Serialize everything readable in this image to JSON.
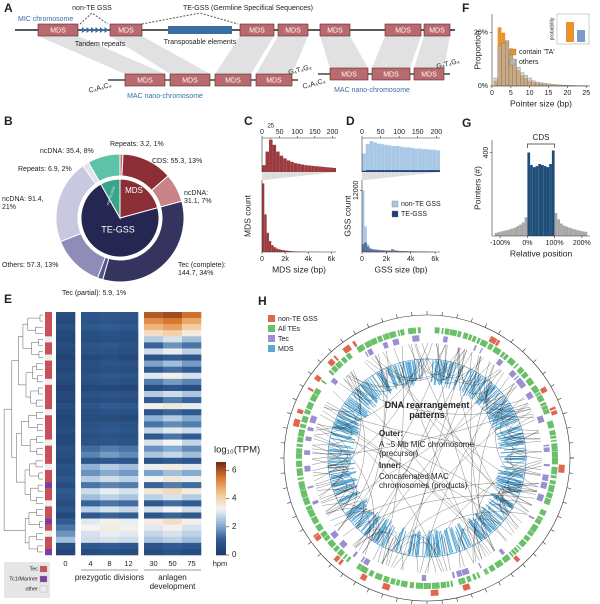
{
  "panel_letters": [
    "A",
    "B",
    "C",
    "D",
    "E",
    "F",
    "G",
    "H"
  ],
  "panel_a": {
    "mic_label": "MIC chromosome",
    "non_te_gss": "non-TE GSS",
    "te_gss": "TE-GSS (Germline Specifical Sequences)",
    "tandem_repeats": "Tandem repeats",
    "transposable_elements": "Transposable elements",
    "mds_label": "MDS",
    "telomere_5": "C₄A₄C₄",
    "telomere_3": "G₄T₄G₄",
    "mac_label": "MAC nano-chromosome"
  },
  "chart_data": [
    {
      "type": "donut",
      "outer": {
        "values": [
          3.2,
          55.3,
          31.1,
          144.7,
          5.9,
          57.3,
          91.4,
          6.9,
          35.4
        ],
        "value_labels": [
          "Repeats: 3.2, 1%",
          "CDS: 55.3, 13%",
          "ncDNA: 31.1, 7%",
          "Tec (complete): 144.7, 34%",
          "Tec (partial): 5.9, 1%",
          "Others: 57.3, 13%",
          "ncDNA: 91.4, 21%",
          "Repeats: 6.9, 2%",
          "ncDNA: 35.4, 8%"
        ],
        "colors": [
          "#c7666d",
          "#8b2e35",
          "#c98389",
          "#34345f",
          "#55558a",
          "#8d8db8",
          "#c8c8e0",
          "#e2e2ef",
          "#5cc2a8"
        ]
      },
      "inner": {
        "names": [
          "MDS",
          "TE-GSS",
          "non-TE GSS"
        ],
        "values": [
          89.6,
          306.2,
          35.4
        ],
        "colors": [
          "#8b2e35",
          "#262652",
          "#38a489"
        ]
      }
    },
    {
      "type": "histogram",
      "bins": [
        0,
        10,
        20,
        30,
        40,
        50,
        60,
        70,
        80,
        90,
        100,
        110,
        120,
        130,
        140,
        150,
        160,
        170,
        180,
        190,
        200,
        210
      ],
      "values": [
        20,
        60,
        95,
        80,
        60,
        48,
        40,
        34,
        30,
        26,
        24,
        22,
        20,
        19,
        18,
        17,
        16,
        15,
        14,
        13,
        12
      ],
      "color": "#9b3a3f",
      "xlim": [
        0,
        210
      ],
      "xticks": [
        0,
        50,
        100,
        150,
        200
      ],
      "ylim": [
        0,
        100
      ],
      "xaxis_position": "top",
      "marker": 25
    },
    {
      "type": "histogram",
      "bins": [
        0,
        200,
        400,
        600,
        800,
        1000,
        1200,
        1400,
        1600,
        1800,
        2000,
        2200,
        2400,
        2600,
        2800,
        3000,
        3200,
        3400,
        3600,
        3800,
        4000,
        4200,
        4400,
        4600,
        4800,
        5000,
        5200,
        5400,
        5600,
        5800,
        6000
      ],
      "values": [
        100,
        55,
        28,
        16,
        10,
        7,
        5,
        4,
        3,
        2.5,
        2,
        1.6,
        1.3,
        1,
        0.9,
        0.7,
        0.6,
        0.5,
        0.4,
        0.35,
        0.3,
        0.25,
        0.2,
        0.2,
        0.15,
        0.1,
        0.1,
        0.1,
        0.05,
        0.05
      ],
      "color": "#9b3a3f",
      "xlim": [
        0,
        6400
      ],
      "xticks": [
        0,
        {
          "value": 2000,
          "label": "2k"
        },
        {
          "value": 4000,
          "label": "4k"
        },
        {
          "value": 6000,
          "label": "6k"
        }
      ],
      "ylim": [
        0,
        105
      ],
      "xlabel": "MDS size (bp)",
      "ylabel": "MDS count"
    },
    {
      "type": "histogram",
      "bins": [
        0,
        10,
        20,
        30,
        40,
        50,
        60,
        70,
        80,
        90,
        100,
        110,
        120,
        130,
        140,
        150,
        160,
        170,
        180,
        190,
        200,
        210
      ],
      "series": [
        {
          "color": "#a9c8e6",
          "values": [
            30,
            45,
            50,
            48,
            46,
            45,
            44,
            43,
            42,
            42,
            41,
            40,
            40,
            39,
            38,
            38,
            37,
            37,
            36,
            36,
            35
          ]
        },
        {
          "color": "#1f3f7a",
          "values": [
            2,
            3,
            3,
            3,
            3,
            3,
            3,
            3,
            3,
            3,
            3,
            3,
            3,
            3,
            3,
            3,
            3,
            3,
            3,
            3,
            3
          ]
        }
      ],
      "xlim": [
        0,
        210
      ],
      "xticks": [
        0,
        50,
        100,
        150,
        200
      ],
      "ylim": [
        0,
        55
      ],
      "xaxis_position": "top"
    },
    {
      "type": "histogram",
      "bins": [
        0,
        200,
        400,
        600,
        800,
        1000,
        1200,
        1400,
        1600,
        1800,
        2000,
        2200,
        2400,
        2600,
        2800,
        3000,
        3200,
        3400,
        3600,
        3800,
        4000,
        4200,
        4400,
        4600,
        4800,
        5000,
        5200,
        5400,
        5600,
        5800,
        6000
      ],
      "series": [
        {
          "name": "non-TE GSS",
          "color": "#a9c8e6",
          "values": [
            12000,
            5000,
            1500,
            700,
            400,
            300,
            200,
            150,
            120,
            100,
            80,
            60,
            50,
            40,
            35,
            30,
            25,
            20,
            18,
            15,
            12,
            10,
            8,
            7,
            6,
            5,
            4,
            3,
            2,
            2
          ]
        },
        {
          "name": "TE-GSS",
          "color": "#1f3f7a",
          "values": [
            1500,
            1800,
            1000,
            600,
            500,
            450,
            400,
            350,
            300,
            280,
            260,
            240,
            500,
            300,
            200,
            180,
            160,
            140,
            120,
            100,
            90,
            80,
            70,
            60,
            50,
            40,
            30,
            20,
            10,
            10
          ]
        }
      ],
      "xlim": [
        0,
        6400
      ],
      "xticks": [
        0,
        {
          "value": 2000,
          "label": "2k"
        },
        {
          "value": 4000,
          "label": "4k"
        },
        {
          "value": 6000,
          "label": "6k"
        }
      ],
      "ylim": [
        0,
        14000
      ],
      "yticks": [
        12000
      ],
      "xlabel": "GSS size (bp)",
      "ylabel": "GSS count"
    },
    {
      "type": "histogram",
      "bins": [
        0.5,
        1.5,
        2.5,
        3.5,
        4.5,
        5.5,
        6.5,
        7.5,
        8.5,
        9.5,
        10.5,
        11.5,
        12.5,
        13.5,
        14.5,
        15.5,
        16.5,
        17.5,
        18.5,
        19.5,
        20.5,
        21.5,
        22.5,
        23.5,
        24.5,
        25.5
      ],
      "series": [
        {
          "name": "contain 'TA'",
          "color": "#e8932e",
          "values": [
            2,
            22,
            20,
            17,
            13,
            9,
            6,
            4,
            3,
            2,
            1.5,
            1.2,
            1,
            0.8,
            0.6,
            0.5,
            0.4,
            0.3,
            0.3,
            0.2,
            0.2,
            0.1,
            0.1,
            0.1,
            0.1
          ]
        },
        {
          "name": "others",
          "color": "#b8b8b8",
          "values": [
            3,
            15,
            16,
            17,
            14,
            10,
            7,
            5,
            4,
            3,
            2,
            1.5,
            1.2,
            1,
            0.8,
            0.6,
            0.5,
            0.4,
            0.3,
            0.3,
            0.2,
            0.2,
            0.1,
            0.1,
            0.1
          ]
        }
      ],
      "xlim": [
        0,
        26
      ],
      "xticks": [
        0,
        5,
        10,
        15,
        20,
        25
      ],
      "ylim": [
        0,
        27
      ],
      "yticks": [
        {
          "value": 0,
          "label": "0%"
        },
        {
          "value": 20,
          "label": "20%"
        }
      ],
      "xlabel": "Pointer size (bp)",
      "ylabel": "Proportion",
      "inset_label": "probability"
    },
    {
      "type": "histogram",
      "bins": [
        -120,
        -110,
        -100,
        -90,
        -80,
        -70,
        -60,
        -50,
        -40,
        -30,
        -20,
        -10,
        0,
        10,
        20,
        30,
        40,
        50,
        60,
        70,
        80,
        90,
        100,
        110,
        120,
        130,
        140,
        150,
        160,
        170,
        180,
        190,
        200,
        210,
        220
      ],
      "values": [
        15,
        18,
        22,
        25,
        28,
        32,
        36,
        40,
        48,
        55,
        65,
        90,
        400,
        340,
        330,
        335,
        345,
        340,
        335,
        330,
        345,
        410,
        110,
        80,
        60,
        50,
        45,
        40,
        35,
        32,
        28,
        25,
        22,
        20
      ],
      "color": "#a8a8a8",
      "highlight": [
        0,
        100
      ],
      "highlight_color": "#1f4e79",
      "annotation": "CDS",
      "xlim": [
        -130,
        230
      ],
      "xticks": [
        {
          "value": -100,
          "label": "-100%"
        },
        {
          "value": 0,
          "label": "0%"
        },
        {
          "value": 100,
          "label": "100%"
        },
        {
          "value": 200,
          "label": "200%"
        }
      ],
      "ylim": [
        0,
        460
      ],
      "yticks": [
        400
      ],
      "xlabel": "Relative position",
      "ylabel": "Pointers (#)"
    },
    {
      "type": "heatmap",
      "columns": [
        0,
        4,
        8,
        12,
        30,
        50,
        75
      ],
      "column_unit": "hpm",
      "groups": [
        {
          "label": "prezygotic divisions",
          "span": [
            1,
            3
          ]
        },
        {
          "label": "anlagen development",
          "span": [
            4,
            6
          ]
        }
      ],
      "zlim": [
        0,
        6.6
      ],
      "zticks": [
        0,
        2,
        4,
        6
      ],
      "colorbar_title": "log₁₀(TPM)",
      "colors": [
        "#1f3a68",
        "#2f5c93",
        "#8fb3d6",
        "#f4f4f4",
        "#f2c48d",
        "#d9772f",
        "#6e2a14"
      ],
      "row_legend": {
        "labels": [
          "Tec",
          "Tc1/Mariner",
          "other"
        ],
        "colors": [
          "#c9505a",
          "#7b3fa0",
          "#eeeeee"
        ]
      },
      "row_annotation": [
        0,
        0,
        0,
        0,
        2,
        0,
        0,
        2,
        0,
        0,
        0,
        2,
        0,
        0,
        0,
        0,
        2,
        0,
        0,
        0,
        0,
        2,
        0,
        0,
        0,
        2,
        0,
        0,
        1,
        0,
        0,
        2,
        0,
        0,
        1,
        0,
        2,
        0,
        0,
        1
      ],
      "values": [
        [
          0.6,
          0.9,
          1.0,
          0.9,
          5.9,
          6.1,
          5.6
        ],
        [
          0.5,
          0.8,
          0.9,
          0.8,
          5.2,
          5.5,
          4.8
        ],
        [
          0.7,
          1.0,
          1.1,
          1.0,
          4.6,
          4.9,
          4.2
        ],
        [
          0.5,
          0.7,
          0.8,
          0.7,
          3.8,
          4.1,
          3.5
        ],
        [
          0.4,
          0.6,
          0.7,
          0.6,
          2.6,
          3.0,
          2.4
        ],
        [
          0.6,
          0.9,
          1.0,
          0.8,
          1.2,
          1.8,
          1.4
        ],
        [
          0.5,
          0.8,
          0.8,
          0.7,
          2.9,
          3.2,
          2.7
        ],
        [
          0.3,
          0.5,
          0.6,
          0.5,
          0.8,
          1.1,
          0.9
        ],
        [
          0.5,
          0.7,
          0.9,
          0.8,
          2.0,
          2.4,
          1.9
        ],
        [
          0.4,
          0.6,
          0.7,
          0.6,
          1.0,
          1.3,
          1.1
        ],
        [
          0.6,
          0.8,
          1.0,
          0.9,
          3.1,
          3.4,
          3.0
        ],
        [
          0.5,
          0.7,
          0.8,
          0.7,
          1.5,
          1.9,
          1.6
        ],
        [
          0.3,
          0.5,
          0.5,
          0.4,
          0.6,
          0.9,
          0.7
        ],
        [
          0.5,
          0.8,
          0.9,
          0.8,
          2.6,
          2.9,
          2.5
        ],
        [
          0.4,
          0.6,
          0.7,
          0.6,
          1.1,
          1.5,
          1.2
        ],
        [
          0.6,
          0.9,
          1.1,
          1.0,
          3.4,
          3.6,
          3.2
        ],
        [
          0.5,
          0.7,
          0.8,
          0.7,
          0.9,
          1.2,
          1.0
        ],
        [
          0.4,
          0.6,
          0.6,
          0.5,
          2.2,
          2.6,
          2.1
        ],
        [
          0.5,
          0.8,
          0.9,
          0.8,
          1.4,
          1.7,
          1.5
        ],
        [
          0.6,
          0.9,
          1.0,
          0.9,
          2.8,
          3.1,
          2.9
        ],
        [
          0.4,
          0.7,
          0.8,
          0.7,
          1.0,
          1.4,
          1.1
        ],
        [
          0.5,
          0.8,
          0.9,
          0.8,
          3.0,
          3.3,
          2.8
        ],
        [
          0.7,
          1.3,
          1.5,
          1.4,
          1.8,
          2.1,
          1.7
        ],
        [
          0.6,
          1.6,
          1.9,
          1.7,
          2.5,
          2.8,
          2.4
        ],
        [
          0.5,
          0.9,
          1.0,
          0.9,
          0.8,
          1.1,
          0.9
        ],
        [
          0.8,
          2.2,
          2.6,
          2.4,
          3.2,
          3.5,
          3.1
        ],
        [
          0.7,
          1.8,
          2.1,
          1.9,
          2.0,
          2.4,
          2.1
        ],
        [
          0.9,
          2.6,
          2.9,
          2.7,
          3.3,
          3.6,
          3.2
        ],
        [
          0.6,
          1.4,
          1.6,
          1.5,
          1.2,
          1.5,
          1.3
        ],
        [
          1.0,
          2.9,
          3.2,
          3.0,
          3.6,
          3.9,
          3.5
        ],
        [
          0.8,
          2.4,
          2.7,
          2.5,
          2.7,
          3.0,
          2.6
        ],
        [
          0.6,
          1.2,
          1.4,
          1.3,
          1.0,
          1.3,
          1.1
        ],
        [
          0.9,
          2.7,
          3.0,
          2.8,
          3.0,
          3.3,
          2.9
        ],
        [
          0.5,
          1.0,
          1.2,
          1.1,
          0.9,
          1.2,
          1.0
        ],
        [
          1.1,
          3.1,
          3.4,
          3.2,
          3.5,
          3.8,
          3.4
        ],
        [
          1.4,
          3.3,
          3.5,
          3.4,
          3.1,
          3.4,
          3.0
        ],
        [
          1.8,
          3.0,
          3.2,
          3.1,
          2.8,
          3.0,
          2.7
        ],
        [
          2.4,
          2.9,
          3.0,
          2.9,
          2.5,
          2.7,
          2.4
        ],
        [
          0.6,
          1.0,
          1.1,
          1.0,
          0.9,
          1.1,
          1.0
        ],
        [
          0.4,
          0.6,
          0.7,
          0.6,
          0.6,
          0.8,
          0.6
        ]
      ]
    }
  ],
  "panel_h": {
    "legend": [
      {
        "label": "non-TE GSS",
        "color": "#e0664f"
      },
      {
        "label": "All TEs",
        "color": "#6abf69"
      },
      {
        "label": "Tec",
        "color": "#9a8fd0"
      },
      {
        "label": "MDS",
        "color": "#5aa9d6"
      }
    ],
    "center_title": "DNA rearrangement patterns",
    "outer_heading": "Outer:",
    "outer_text": "A ~5 Mb MIC chromosome (precursor)",
    "inner_heading": "Inner:",
    "inner_text": "Concatenated MAC chromosomes (products)"
  }
}
